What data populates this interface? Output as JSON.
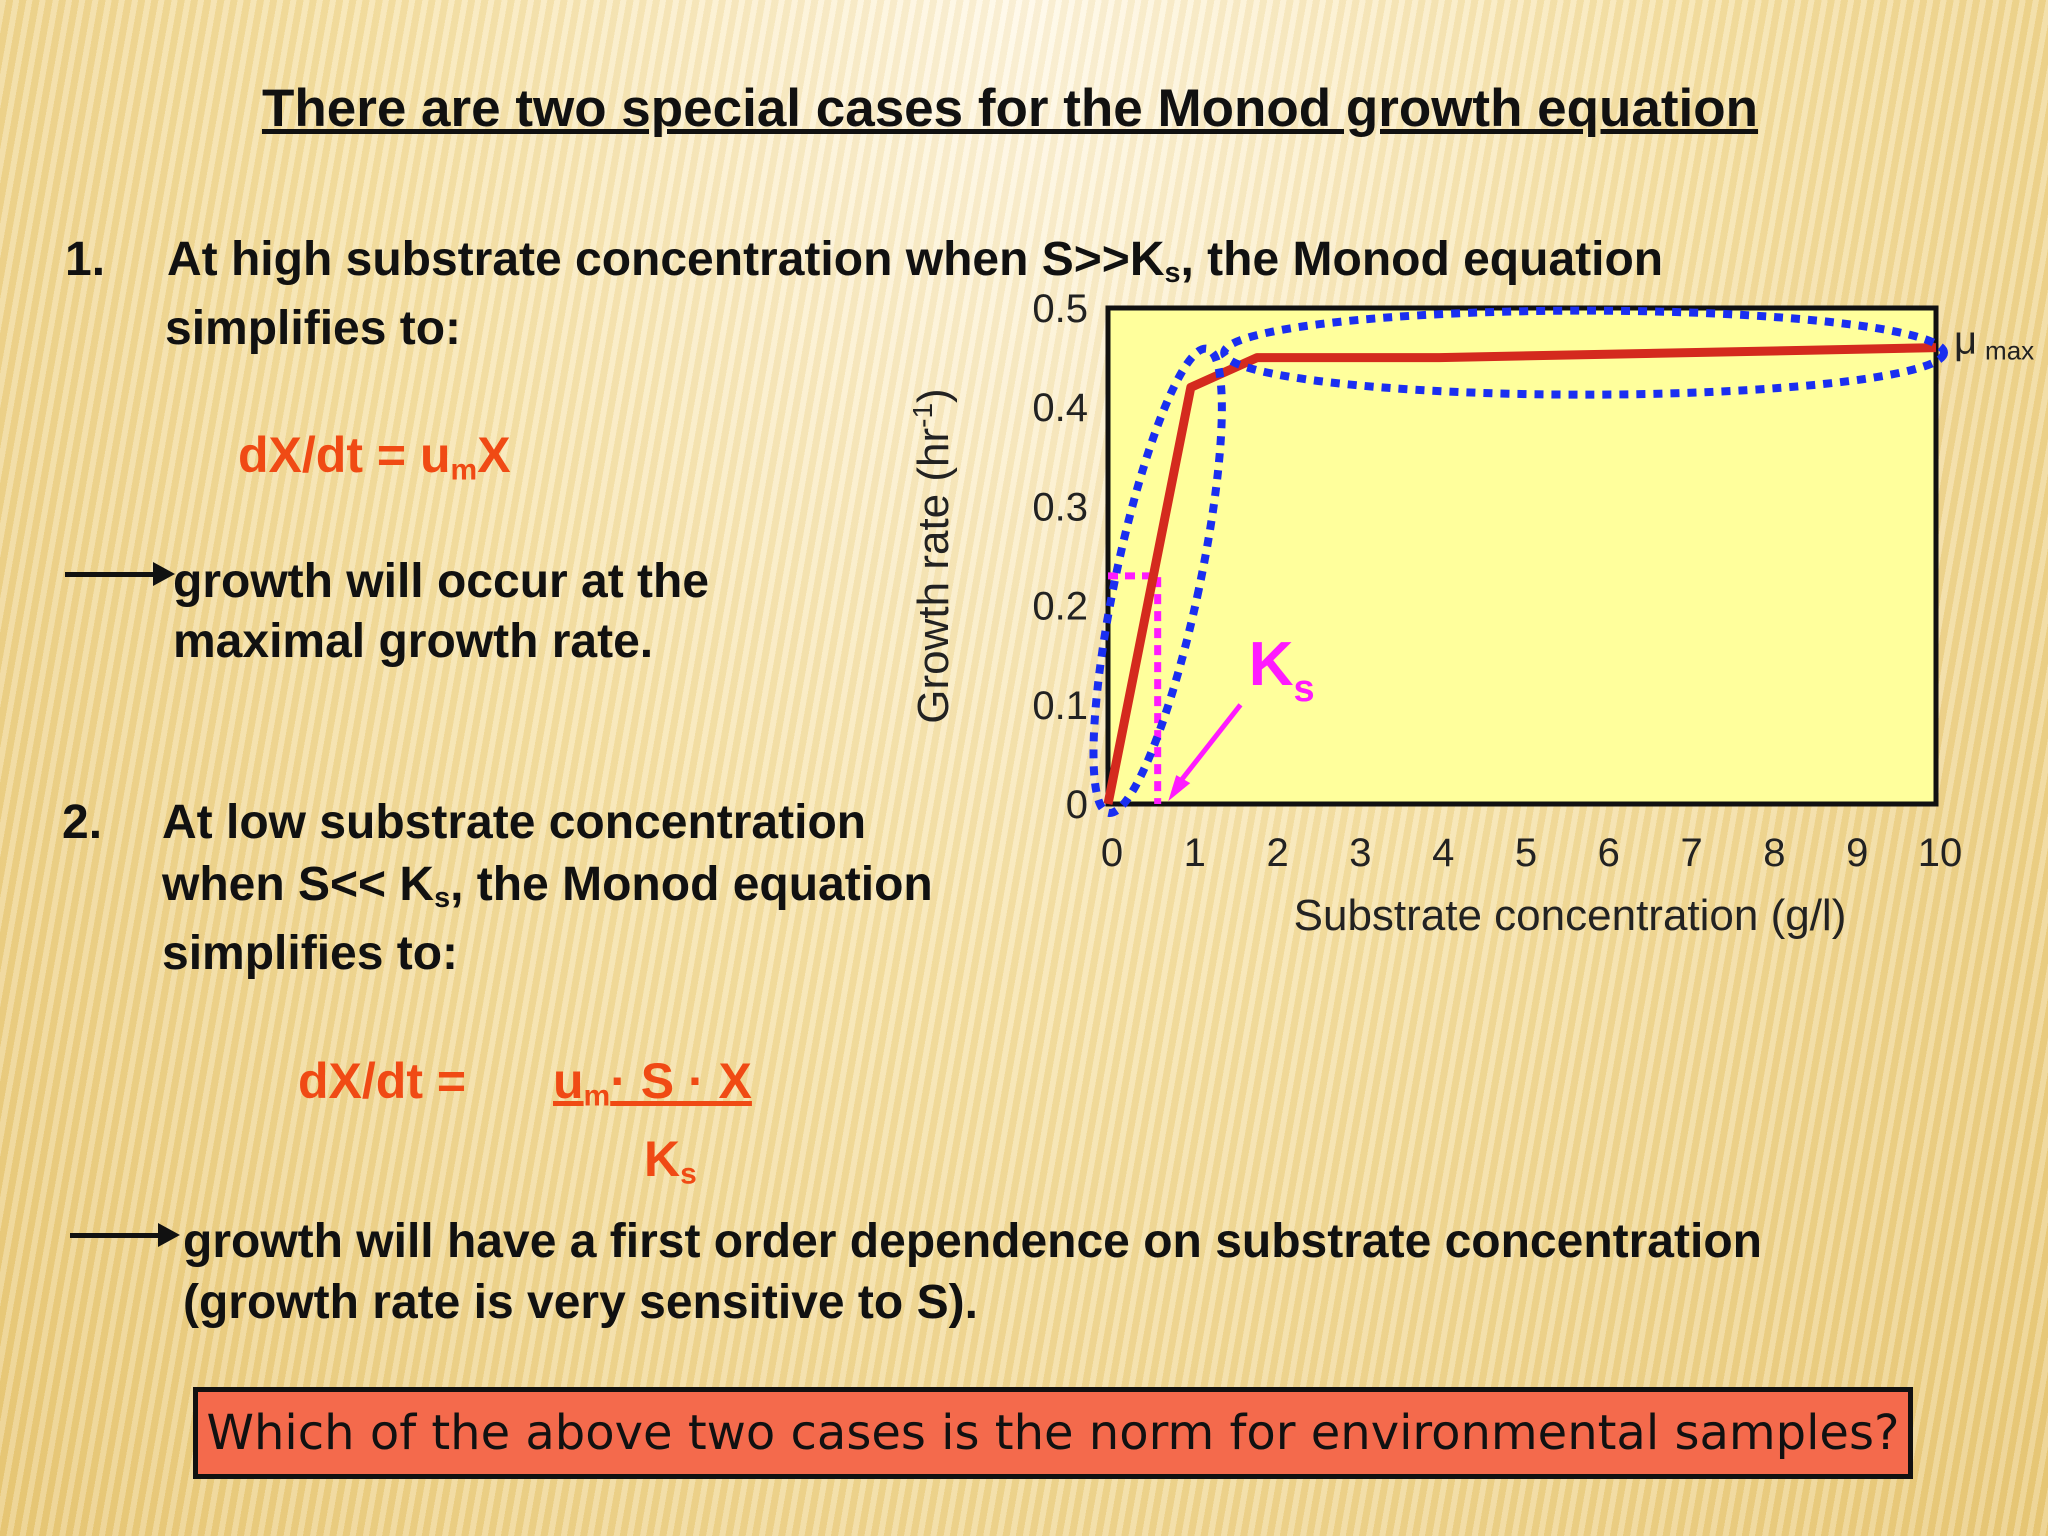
{
  "title": "There are two special cases for the Monod growth equation",
  "case1": {
    "number": "1.",
    "line1_pre": "At high substrate concentration when S>>K",
    "line1_sub": "s",
    "line1_post": ", the Monod equation",
    "line2": "simplifies to:",
    "equation_pre": "dX/dt = u",
    "equation_sub": "m",
    "equation_post": "X",
    "note_line1": "growth will occur at the",
    "note_line2": "maximal growth rate."
  },
  "case2": {
    "number": "2.",
    "line1": "At low substrate concentration",
    "line2_pre": "when S<< K",
    "line2_sub": "s",
    "line2_post": ", the Monod equation",
    "line3": "simplifies to:",
    "eq_lhs": "dX/dt  =",
    "eq_num_u": "u",
    "eq_num_sub": "m",
    "eq_num_rest": "· S · X",
    "eq_den": "K",
    "eq_den_sub": "s",
    "note_line1": "growth will have a first order dependence on substrate concentration",
    "note_line2": "(growth rate is very sensitive to S)."
  },
  "question": "Which of the above two cases is the norm for environmental samples?",
  "chart_data": {
    "type": "line",
    "xlabel": "Substrate concentration (g/l)",
    "ylabel": "Growth rate  (hr",
    "ylabel_sup": "-1",
    "ylabel_end": ")",
    "xlim": [
      0,
      10
    ],
    "ylim": [
      0,
      0.5
    ],
    "xticks": [
      "0",
      "1",
      "2",
      "3",
      "4",
      "5",
      "6",
      "7",
      "8",
      "9",
      "10"
    ],
    "yticks": [
      "0",
      "0.1",
      "0.2",
      "0.3",
      "0.4",
      "0.5"
    ],
    "x": [
      0,
      1,
      1.8,
      4,
      10
    ],
    "y": [
      0,
      0.42,
      0.45,
      0.45,
      0.46
    ],
    "ks_annotation": "K",
    "ks_annotation_sub": "s",
    "ks_value": 0.6,
    "half_rate": 0.23,
    "umax_annotation": "μ",
    "umax_annotation_sub": "max",
    "colors": {
      "curve": "#d42a1e",
      "ellipses": "#1a2ef0",
      "ks": "#ff1aff",
      "plot_bg": "#ffff9c"
    }
  }
}
